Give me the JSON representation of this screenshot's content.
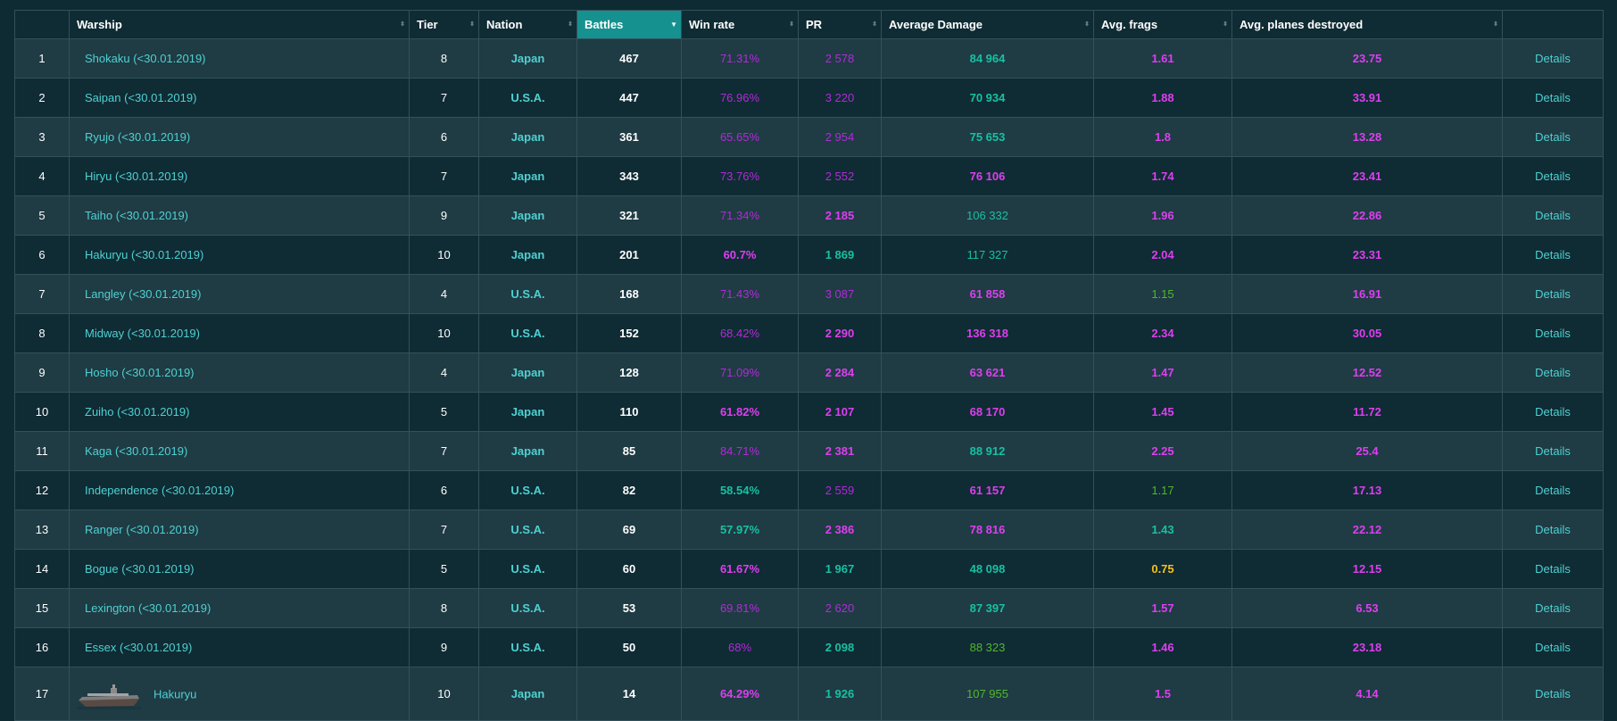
{
  "table": {
    "headers": [
      {
        "label": "",
        "name": "header-index",
        "cls": "",
        "sortable": false
      },
      {
        "label": "Warship",
        "name": "header-warship",
        "cls": "",
        "sortable": true
      },
      {
        "label": "Tier",
        "name": "header-tier",
        "cls": "",
        "sortable": true
      },
      {
        "label": "Nation",
        "name": "header-nation",
        "cls": "",
        "sortable": true
      },
      {
        "label": "Battles",
        "name": "header-battles",
        "cls": "sorted",
        "sortable": true
      },
      {
        "label": "Win rate",
        "name": "header-win-rate",
        "cls": "",
        "sortable": true
      },
      {
        "label": "PR",
        "name": "header-pr",
        "cls": "",
        "sortable": true
      },
      {
        "label": "Average Damage",
        "name": "header-average-damage",
        "cls": "",
        "sortable": true
      },
      {
        "label": "Avg. frags",
        "name": "header-avg-frags",
        "cls": "",
        "sortable": true
      },
      {
        "label": "Avg. planes destroyed",
        "name": "header-avg-planes",
        "cls": "",
        "sortable": true
      },
      {
        "label": "",
        "name": "header-details",
        "cls": "",
        "sortable": false
      }
    ],
    "sort_icons": {
      "inactive": "⬍",
      "active": "▼"
    },
    "details_label": "Details",
    "colors": {
      "purple": "#b22ad8",
      "magenta": "#de3ef0",
      "teal": "#17c1a2",
      "green": "#50b82a",
      "yellow": "#f5c21c",
      "white": "#ffffff"
    },
    "rows": [
      {
        "n": "1",
        "ship": "Shokaku (<30.01.2019)",
        "tier": "8",
        "nation": "Japan",
        "battles": "467",
        "wr": "71.31%",
        "wr_c": "purple",
        "wr_b": false,
        "pr": "2 578",
        "pr_c": "purple",
        "pr_b": false,
        "dmg": "84 964",
        "dmg_c": "teal",
        "dmg_b": true,
        "frags": "1.61",
        "frags_c": "magenta",
        "frags_b": true,
        "planes": "23.75",
        "planes_c": "magenta",
        "planes_b": true
      },
      {
        "n": "2",
        "ship": "Saipan (<30.01.2019)",
        "tier": "7",
        "nation": "U.S.A.",
        "battles": "447",
        "wr": "76.96%",
        "wr_c": "purple",
        "wr_b": false,
        "pr": "3 220",
        "pr_c": "purple",
        "pr_b": false,
        "dmg": "70 934",
        "dmg_c": "teal",
        "dmg_b": true,
        "frags": "1.88",
        "frags_c": "magenta",
        "frags_b": true,
        "planes": "33.91",
        "planes_c": "magenta",
        "planes_b": true
      },
      {
        "n": "3",
        "ship": "Ryujo (<30.01.2019)",
        "tier": "6",
        "nation": "Japan",
        "battles": "361",
        "wr": "65.65%",
        "wr_c": "purple",
        "wr_b": false,
        "pr": "2 954",
        "pr_c": "purple",
        "pr_b": false,
        "dmg": "75 653",
        "dmg_c": "teal",
        "dmg_b": true,
        "frags": "1.8",
        "frags_c": "magenta",
        "frags_b": true,
        "planes": "13.28",
        "planes_c": "magenta",
        "planes_b": true
      },
      {
        "n": "4",
        "ship": "Hiryu (<30.01.2019)",
        "tier": "7",
        "nation": "Japan",
        "battles": "343",
        "wr": "73.76%",
        "wr_c": "purple",
        "wr_b": false,
        "pr": "2 552",
        "pr_c": "purple",
        "pr_b": false,
        "dmg": "76 106",
        "dmg_c": "magenta",
        "dmg_b": true,
        "frags": "1.74",
        "frags_c": "magenta",
        "frags_b": true,
        "planes": "23.41",
        "planes_c": "magenta",
        "planes_b": true
      },
      {
        "n": "5",
        "ship": "Taiho (<30.01.2019)",
        "tier": "9",
        "nation": "Japan",
        "battles": "321",
        "wr": "71.34%",
        "wr_c": "purple",
        "wr_b": false,
        "pr": "2 185",
        "pr_c": "magenta",
        "pr_b": true,
        "dmg": "106 332",
        "dmg_c": "teal",
        "dmg_b": false,
        "frags": "1.96",
        "frags_c": "magenta",
        "frags_b": true,
        "planes": "22.86",
        "planes_c": "magenta",
        "planes_b": true
      },
      {
        "n": "6",
        "ship": "Hakuryu (<30.01.2019)",
        "tier": "10",
        "nation": "Japan",
        "battles": "201",
        "wr": "60.7%",
        "wr_c": "magenta",
        "wr_b": true,
        "pr": "1 869",
        "pr_c": "teal",
        "pr_b": true,
        "dmg": "117 327",
        "dmg_c": "teal",
        "dmg_b": false,
        "frags": "2.04",
        "frags_c": "magenta",
        "frags_b": true,
        "planes": "23.31",
        "planes_c": "magenta",
        "planes_b": true
      },
      {
        "n": "7",
        "ship": "Langley (<30.01.2019)",
        "tier": "4",
        "nation": "U.S.A.",
        "battles": "168",
        "wr": "71.43%",
        "wr_c": "purple",
        "wr_b": false,
        "pr": "3 087",
        "pr_c": "purple",
        "pr_b": false,
        "dmg": "61 858",
        "dmg_c": "magenta",
        "dmg_b": true,
        "frags": "1.15",
        "frags_c": "green",
        "frags_b": false,
        "planes": "16.91",
        "planes_c": "magenta",
        "planes_b": true
      },
      {
        "n": "8",
        "ship": "Midway (<30.01.2019)",
        "tier": "10",
        "nation": "U.S.A.",
        "battles": "152",
        "wr": "68.42%",
        "wr_c": "purple",
        "wr_b": false,
        "pr": "2 290",
        "pr_c": "magenta",
        "pr_b": true,
        "dmg": "136 318",
        "dmg_c": "magenta",
        "dmg_b": true,
        "frags": "2.34",
        "frags_c": "magenta",
        "frags_b": true,
        "planes": "30.05",
        "planes_c": "magenta",
        "planes_b": true
      },
      {
        "n": "9",
        "ship": "Hosho (<30.01.2019)",
        "tier": "4",
        "nation": "Japan",
        "battles": "128",
        "wr": "71.09%",
        "wr_c": "purple",
        "wr_b": false,
        "pr": "2 284",
        "pr_c": "magenta",
        "pr_b": true,
        "dmg": "63 621",
        "dmg_c": "magenta",
        "dmg_b": true,
        "frags": "1.47",
        "frags_c": "magenta",
        "frags_b": true,
        "planes": "12.52",
        "planes_c": "magenta",
        "planes_b": true
      },
      {
        "n": "10",
        "ship": "Zuiho (<30.01.2019)",
        "tier": "5",
        "nation": "Japan",
        "battles": "110",
        "wr": "61.82%",
        "wr_c": "magenta",
        "wr_b": true,
        "pr": "2 107",
        "pr_c": "magenta",
        "pr_b": true,
        "dmg": "68 170",
        "dmg_c": "magenta",
        "dmg_b": true,
        "frags": "1.45",
        "frags_c": "magenta",
        "frags_b": true,
        "planes": "11.72",
        "planes_c": "magenta",
        "planes_b": true
      },
      {
        "n": "11",
        "ship": "Kaga (<30.01.2019)",
        "tier": "7",
        "nation": "Japan",
        "battles": "85",
        "wr": "84.71%",
        "wr_c": "purple",
        "wr_b": false,
        "pr": "2 381",
        "pr_c": "magenta",
        "pr_b": true,
        "dmg": "88 912",
        "dmg_c": "teal",
        "dmg_b": true,
        "frags": "2.25",
        "frags_c": "magenta",
        "frags_b": true,
        "planes": "25.4",
        "planes_c": "magenta",
        "planes_b": true
      },
      {
        "n": "12",
        "ship": "Independence (<30.01.2019)",
        "tier": "6",
        "nation": "U.S.A.",
        "battles": "82",
        "wr": "58.54%",
        "wr_c": "teal",
        "wr_b": true,
        "pr": "2 559",
        "pr_c": "purple",
        "pr_b": false,
        "dmg": "61 157",
        "dmg_c": "magenta",
        "dmg_b": true,
        "frags": "1.17",
        "frags_c": "green",
        "frags_b": false,
        "planes": "17.13",
        "planes_c": "magenta",
        "planes_b": true
      },
      {
        "n": "13",
        "ship": "Ranger (<30.01.2019)",
        "tier": "7",
        "nation": "U.S.A.",
        "battles": "69",
        "wr": "57.97%",
        "wr_c": "teal",
        "wr_b": true,
        "pr": "2 386",
        "pr_c": "magenta",
        "pr_b": true,
        "dmg": "78 816",
        "dmg_c": "magenta",
        "dmg_b": true,
        "frags": "1.43",
        "frags_c": "teal",
        "frags_b": true,
        "planes": "22.12",
        "planes_c": "magenta",
        "planes_b": true
      },
      {
        "n": "14",
        "ship": "Bogue (<30.01.2019)",
        "tier": "5",
        "nation": "U.S.A.",
        "battles": "60",
        "wr": "61.67%",
        "wr_c": "magenta",
        "wr_b": true,
        "pr": "1 967",
        "pr_c": "teal",
        "pr_b": true,
        "dmg": "48 098",
        "dmg_c": "teal",
        "dmg_b": true,
        "frags": "0.75",
        "frags_c": "yellow",
        "frags_b": true,
        "planes": "12.15",
        "planes_c": "magenta",
        "planes_b": true
      },
      {
        "n": "15",
        "ship": "Lexington (<30.01.2019)",
        "tier": "8",
        "nation": "U.S.A.",
        "battles": "53",
        "wr": "69.81%",
        "wr_c": "purple",
        "wr_b": false,
        "pr": "2 620",
        "pr_c": "purple",
        "pr_b": false,
        "dmg": "87 397",
        "dmg_c": "teal",
        "dmg_b": true,
        "frags": "1.57",
        "frags_c": "magenta",
        "frags_b": true,
        "planes": "6.53",
        "planes_c": "magenta",
        "planes_b": true
      },
      {
        "n": "16",
        "ship": "Essex (<30.01.2019)",
        "tier": "9",
        "nation": "U.S.A.",
        "battles": "50",
        "wr": "68%",
        "wr_c": "purple",
        "wr_b": false,
        "pr": "2 098",
        "pr_c": "teal",
        "pr_b": true,
        "dmg": "88 323",
        "dmg_c": "green",
        "dmg_b": false,
        "frags": "1.46",
        "frags_c": "magenta",
        "frags_b": true,
        "planes": "23.18",
        "planes_c": "magenta",
        "planes_b": true
      },
      {
        "n": "17",
        "ship": "Hakuryu",
        "tier": "10",
        "nation": "Japan",
        "battles": "14",
        "wr": "64.29%",
        "wr_c": "magenta",
        "wr_b": true,
        "pr": "1 926",
        "pr_c": "teal",
        "pr_b": true,
        "dmg": "107 955",
        "dmg_c": "green",
        "dmg_b": false,
        "frags": "1.5",
        "frags_c": "magenta",
        "frags_b": true,
        "planes": "4.14",
        "planes_c": "magenta",
        "planes_b": true,
        "has_image": true
      }
    ]
  }
}
